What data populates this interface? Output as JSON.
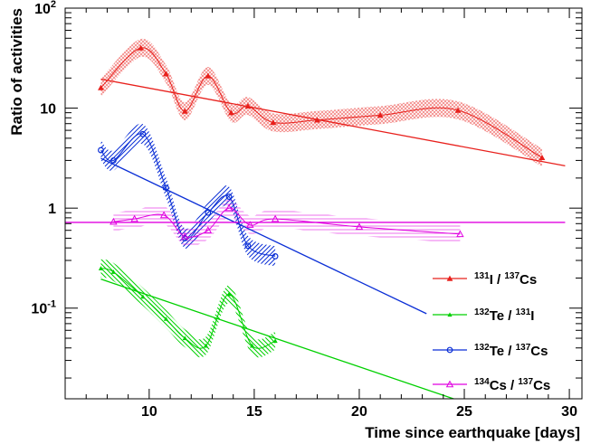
{
  "chart_data": {
    "type": "scatter",
    "title": "",
    "xlabel": "Time since earthquake [days]",
    "ylabel": "Ratio of activities",
    "xlim": [
      6.0,
      30.6
    ],
    "ylim": [
      0.0124,
      100
    ],
    "yscale": "log",
    "grid": false,
    "legend_position": "bottom-right",
    "x_ticks": [
      10,
      15,
      20,
      25,
      30
    ],
    "x_tick_labels": [
      "10",
      "15",
      "20",
      "25",
      "30"
    ],
    "y_ticks": [
      {
        "value": 100,
        "base": "10",
        "exp": "2"
      },
      {
        "value": 10,
        "base": "10",
        "exp": ""
      },
      {
        "value": 1,
        "base": "1",
        "exp": ""
      },
      {
        "value": 0.1,
        "base": "10",
        "exp": "-1"
      }
    ],
    "series": [
      {
        "name": "131I / 137Cs",
        "label_parts": [
          {
            "sup": "131"
          },
          {
            "text": "I / "
          },
          {
            "sup": "137"
          },
          {
            "text": "Cs"
          }
        ],
        "color": "#e8201c",
        "marker": "triangle-filled",
        "band_style": "crosshatch",
        "x": [
          7.7,
          9.6,
          10.8,
          11.7,
          12.8,
          13.9,
          14.7,
          15.9,
          18.0,
          21.0,
          24.7,
          28.7
        ],
        "y": [
          16,
          40,
          22,
          9.3,
          21,
          9.0,
          10.5,
          7.2,
          7.6,
          8.5,
          9.5,
          3.2
        ],
        "band_halfwidth_log10": 0.09,
        "fit": {
          "x": [
            7.7,
            29.8
          ],
          "y": [
            19.5,
            2.65
          ]
        }
      },
      {
        "name": "132Te / 131I",
        "label_parts": [
          {
            "sup": "132"
          },
          {
            "text": "Te / "
          },
          {
            "sup": "131"
          },
          {
            "text": "I"
          }
        ],
        "color": "#00d000",
        "marker": "triangle-filled-small",
        "band_style": "hatch-left",
        "x": [
          7.7,
          8.3,
          9.7,
          10.8,
          11.7,
          12.7,
          13.8,
          14.9,
          16.0
        ],
        "y": [
          0.25,
          0.23,
          0.13,
          0.078,
          0.05,
          0.042,
          0.138,
          0.042,
          0.047
        ],
        "band_halfwidth_log10": 0.09,
        "fit": {
          "x": [
            7.7,
            25.5
          ],
          "y": [
            0.195,
            0.0105
          ]
        }
      },
      {
        "name": "132Te / 137Cs",
        "label_parts": [
          {
            "sup": "132"
          },
          {
            "text": "Te / "
          },
          {
            "sup": "137"
          },
          {
            "text": "Cs"
          }
        ],
        "color": "#0b2fd6",
        "marker": "circle-open",
        "band_style": "hatch-right",
        "x": [
          7.7,
          8.3,
          9.7,
          10.8,
          11.7,
          12.8,
          13.8,
          14.7,
          16.0
        ],
        "y": [
          3.8,
          3.0,
          5.5,
          1.6,
          0.5,
          0.9,
          1.3,
          0.42,
          0.33
        ],
        "band_halfwidth_log10": 0.1,
        "fit": {
          "x": [
            7.7,
            23.2
          ],
          "y": [
            3.15,
            0.088
          ]
        }
      },
      {
        "name": "134Cs / 137Cs",
        "label_parts": [
          {
            "sup": "134"
          },
          {
            "text": "Cs / "
          },
          {
            "sup": "137"
          },
          {
            "text": "Cs"
          }
        ],
        "color": "#e000e0",
        "marker": "triangle-open",
        "band_style": "horizontal-lines",
        "x": [
          8.3,
          9.3,
          10.7,
          11.7,
          12.8,
          13.8,
          14.8,
          16.0,
          20.0,
          24.8
        ],
        "y": [
          0.73,
          0.78,
          0.85,
          0.52,
          0.6,
          1.0,
          0.68,
          0.78,
          0.65,
          0.55
        ],
        "band_halfwidth_log10": 0.09,
        "fit": {
          "x": [
            6.0,
            29.8
          ],
          "y": [
            0.72,
            0.72
          ]
        }
      }
    ]
  }
}
